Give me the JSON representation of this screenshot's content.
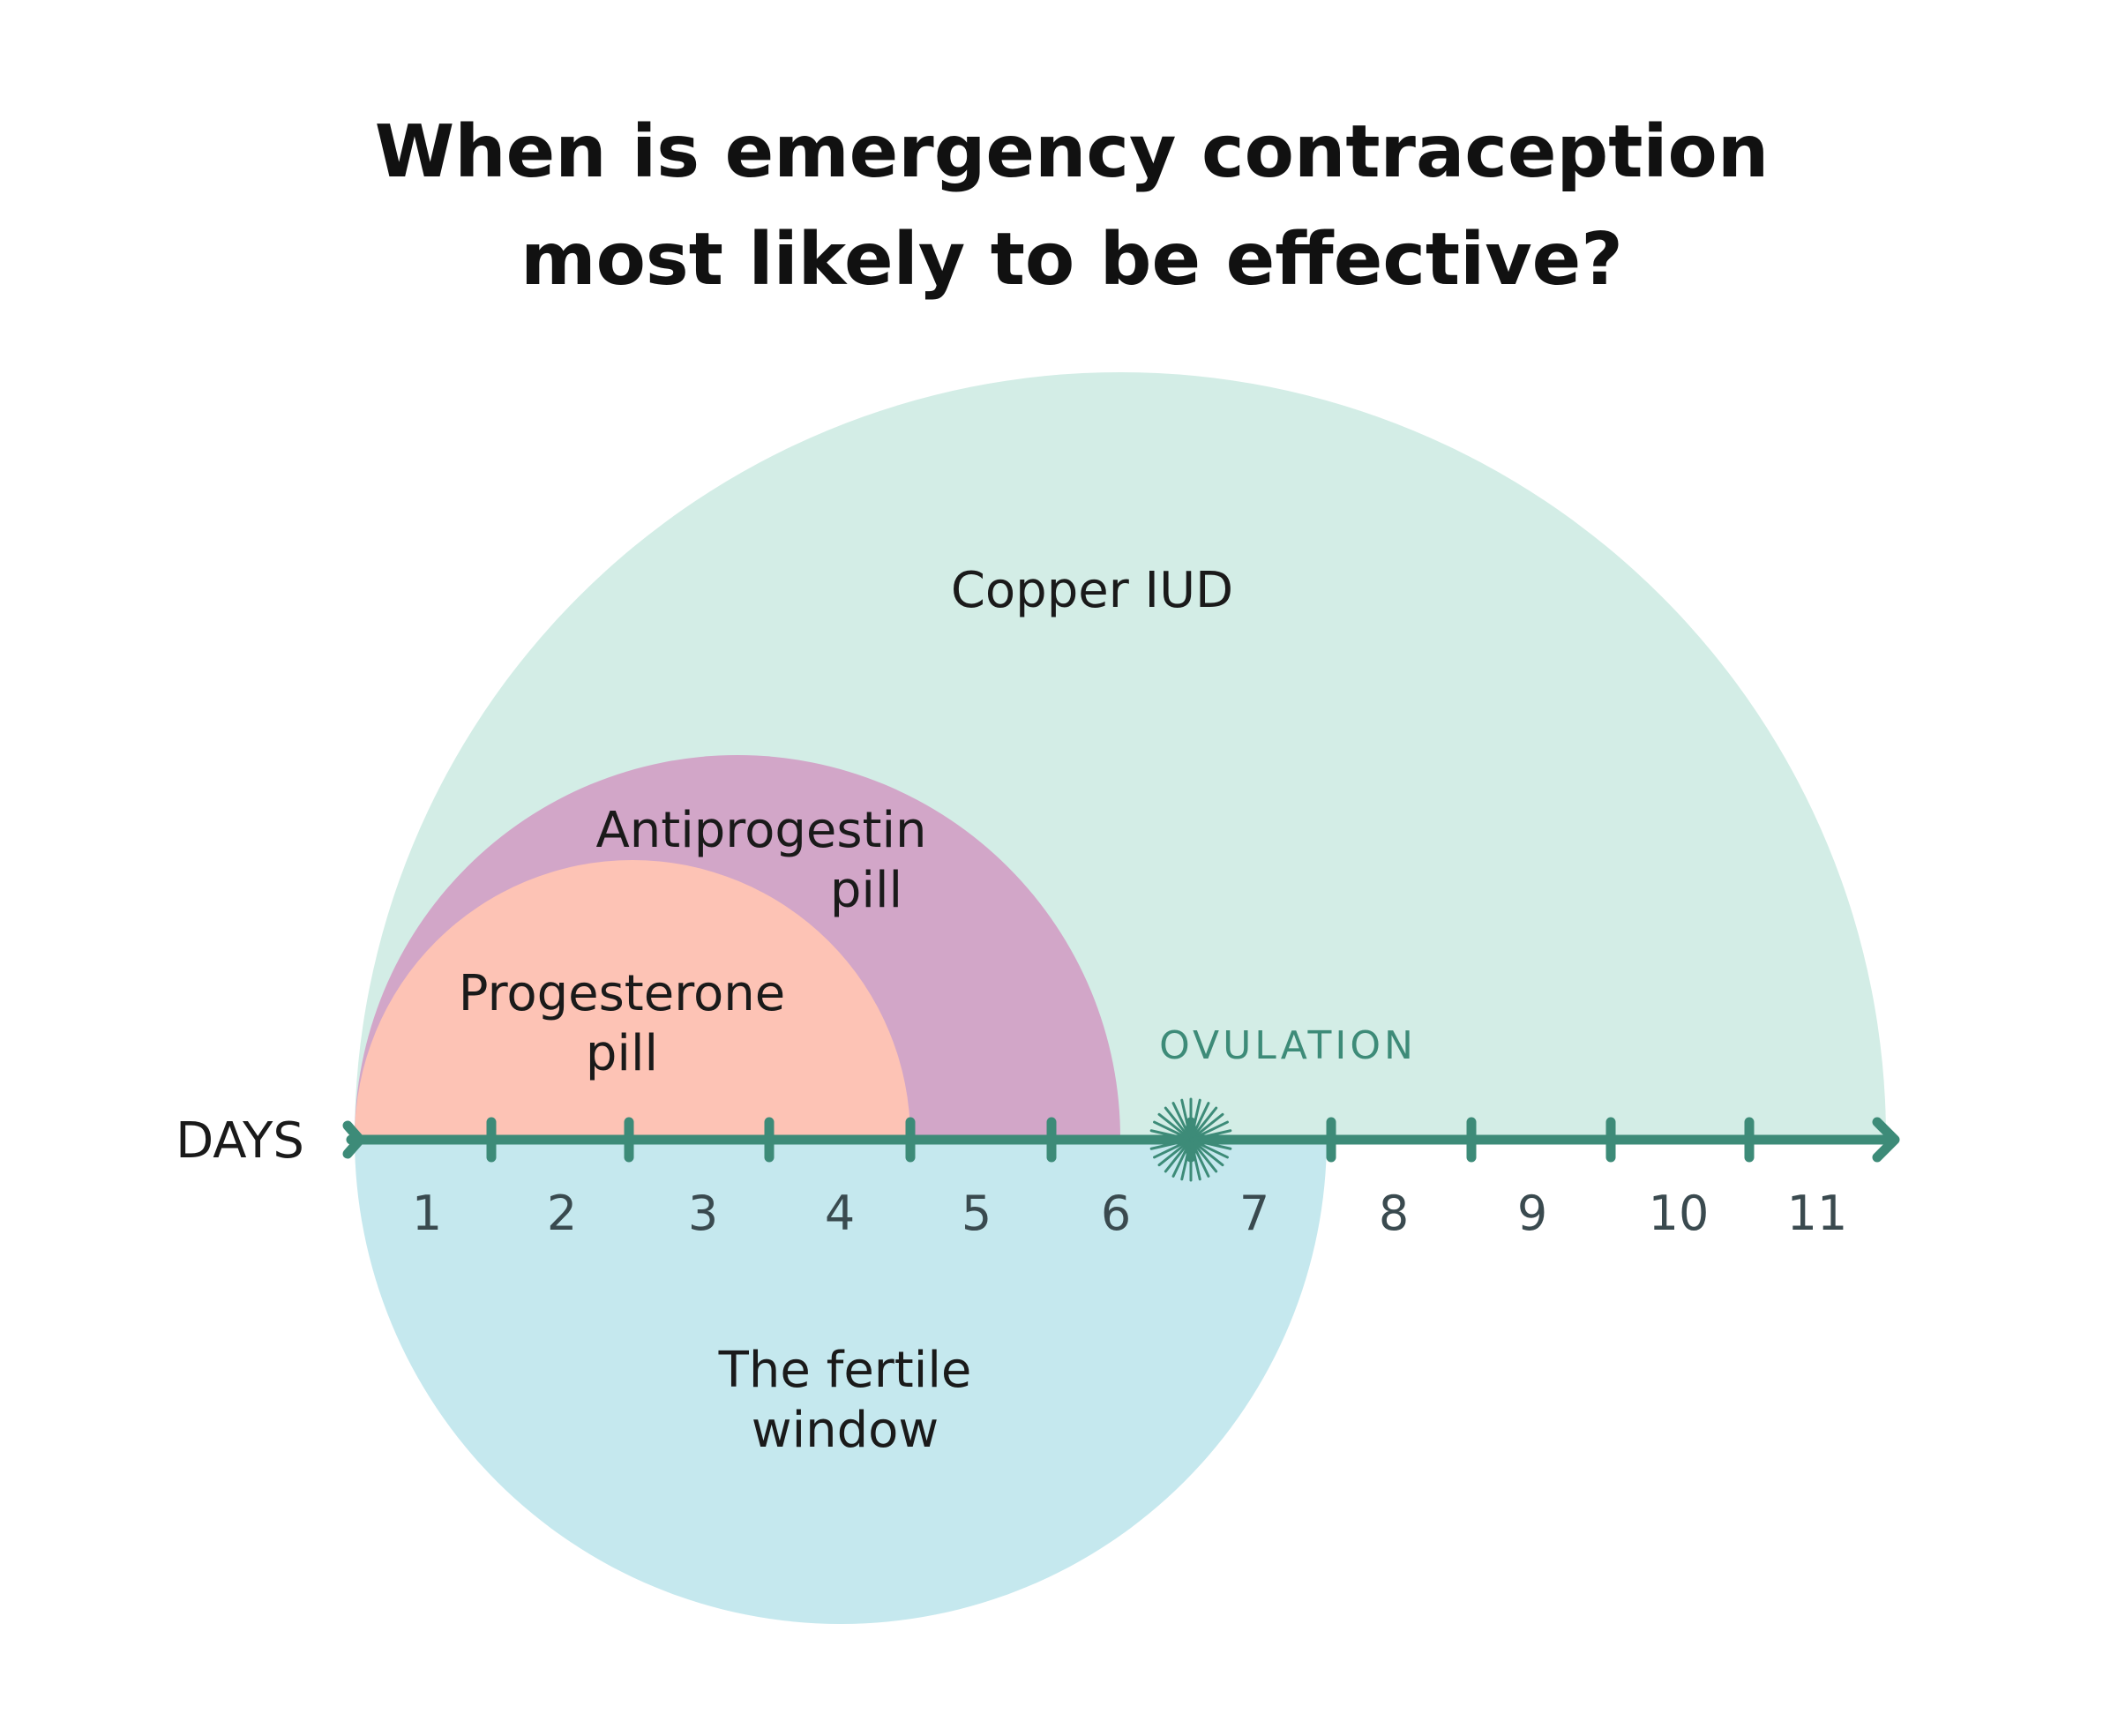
{
  "title": {
    "line1": "When is emergency contraception",
    "line2": "most likely to be effective?"
  },
  "axis": {
    "label": "DAYS",
    "ticks": [
      "1",
      "2",
      "3",
      "4",
      "5",
      "6",
      "7",
      "8",
      "9",
      "10",
      "11"
    ]
  },
  "ovulation": {
    "label": "OVULATION"
  },
  "regions": {
    "copper_iud": {
      "label": "Copper IUD"
    },
    "antiprogestin": {
      "line1": "Antiprogestin",
      "line2": "pill"
    },
    "progesterone": {
      "line1": "Progesterone",
      "line2": "pill"
    },
    "fertile_window": {
      "line1": "The fertile",
      "line2": "window"
    }
  },
  "colors": {
    "axis": "#3d8b78",
    "copper_iud": "#d3ede6",
    "antiprogestin": "#d2a6c8",
    "progesterone": "#fdc3b5",
    "fertile_window": "#c5e8ee"
  }
}
